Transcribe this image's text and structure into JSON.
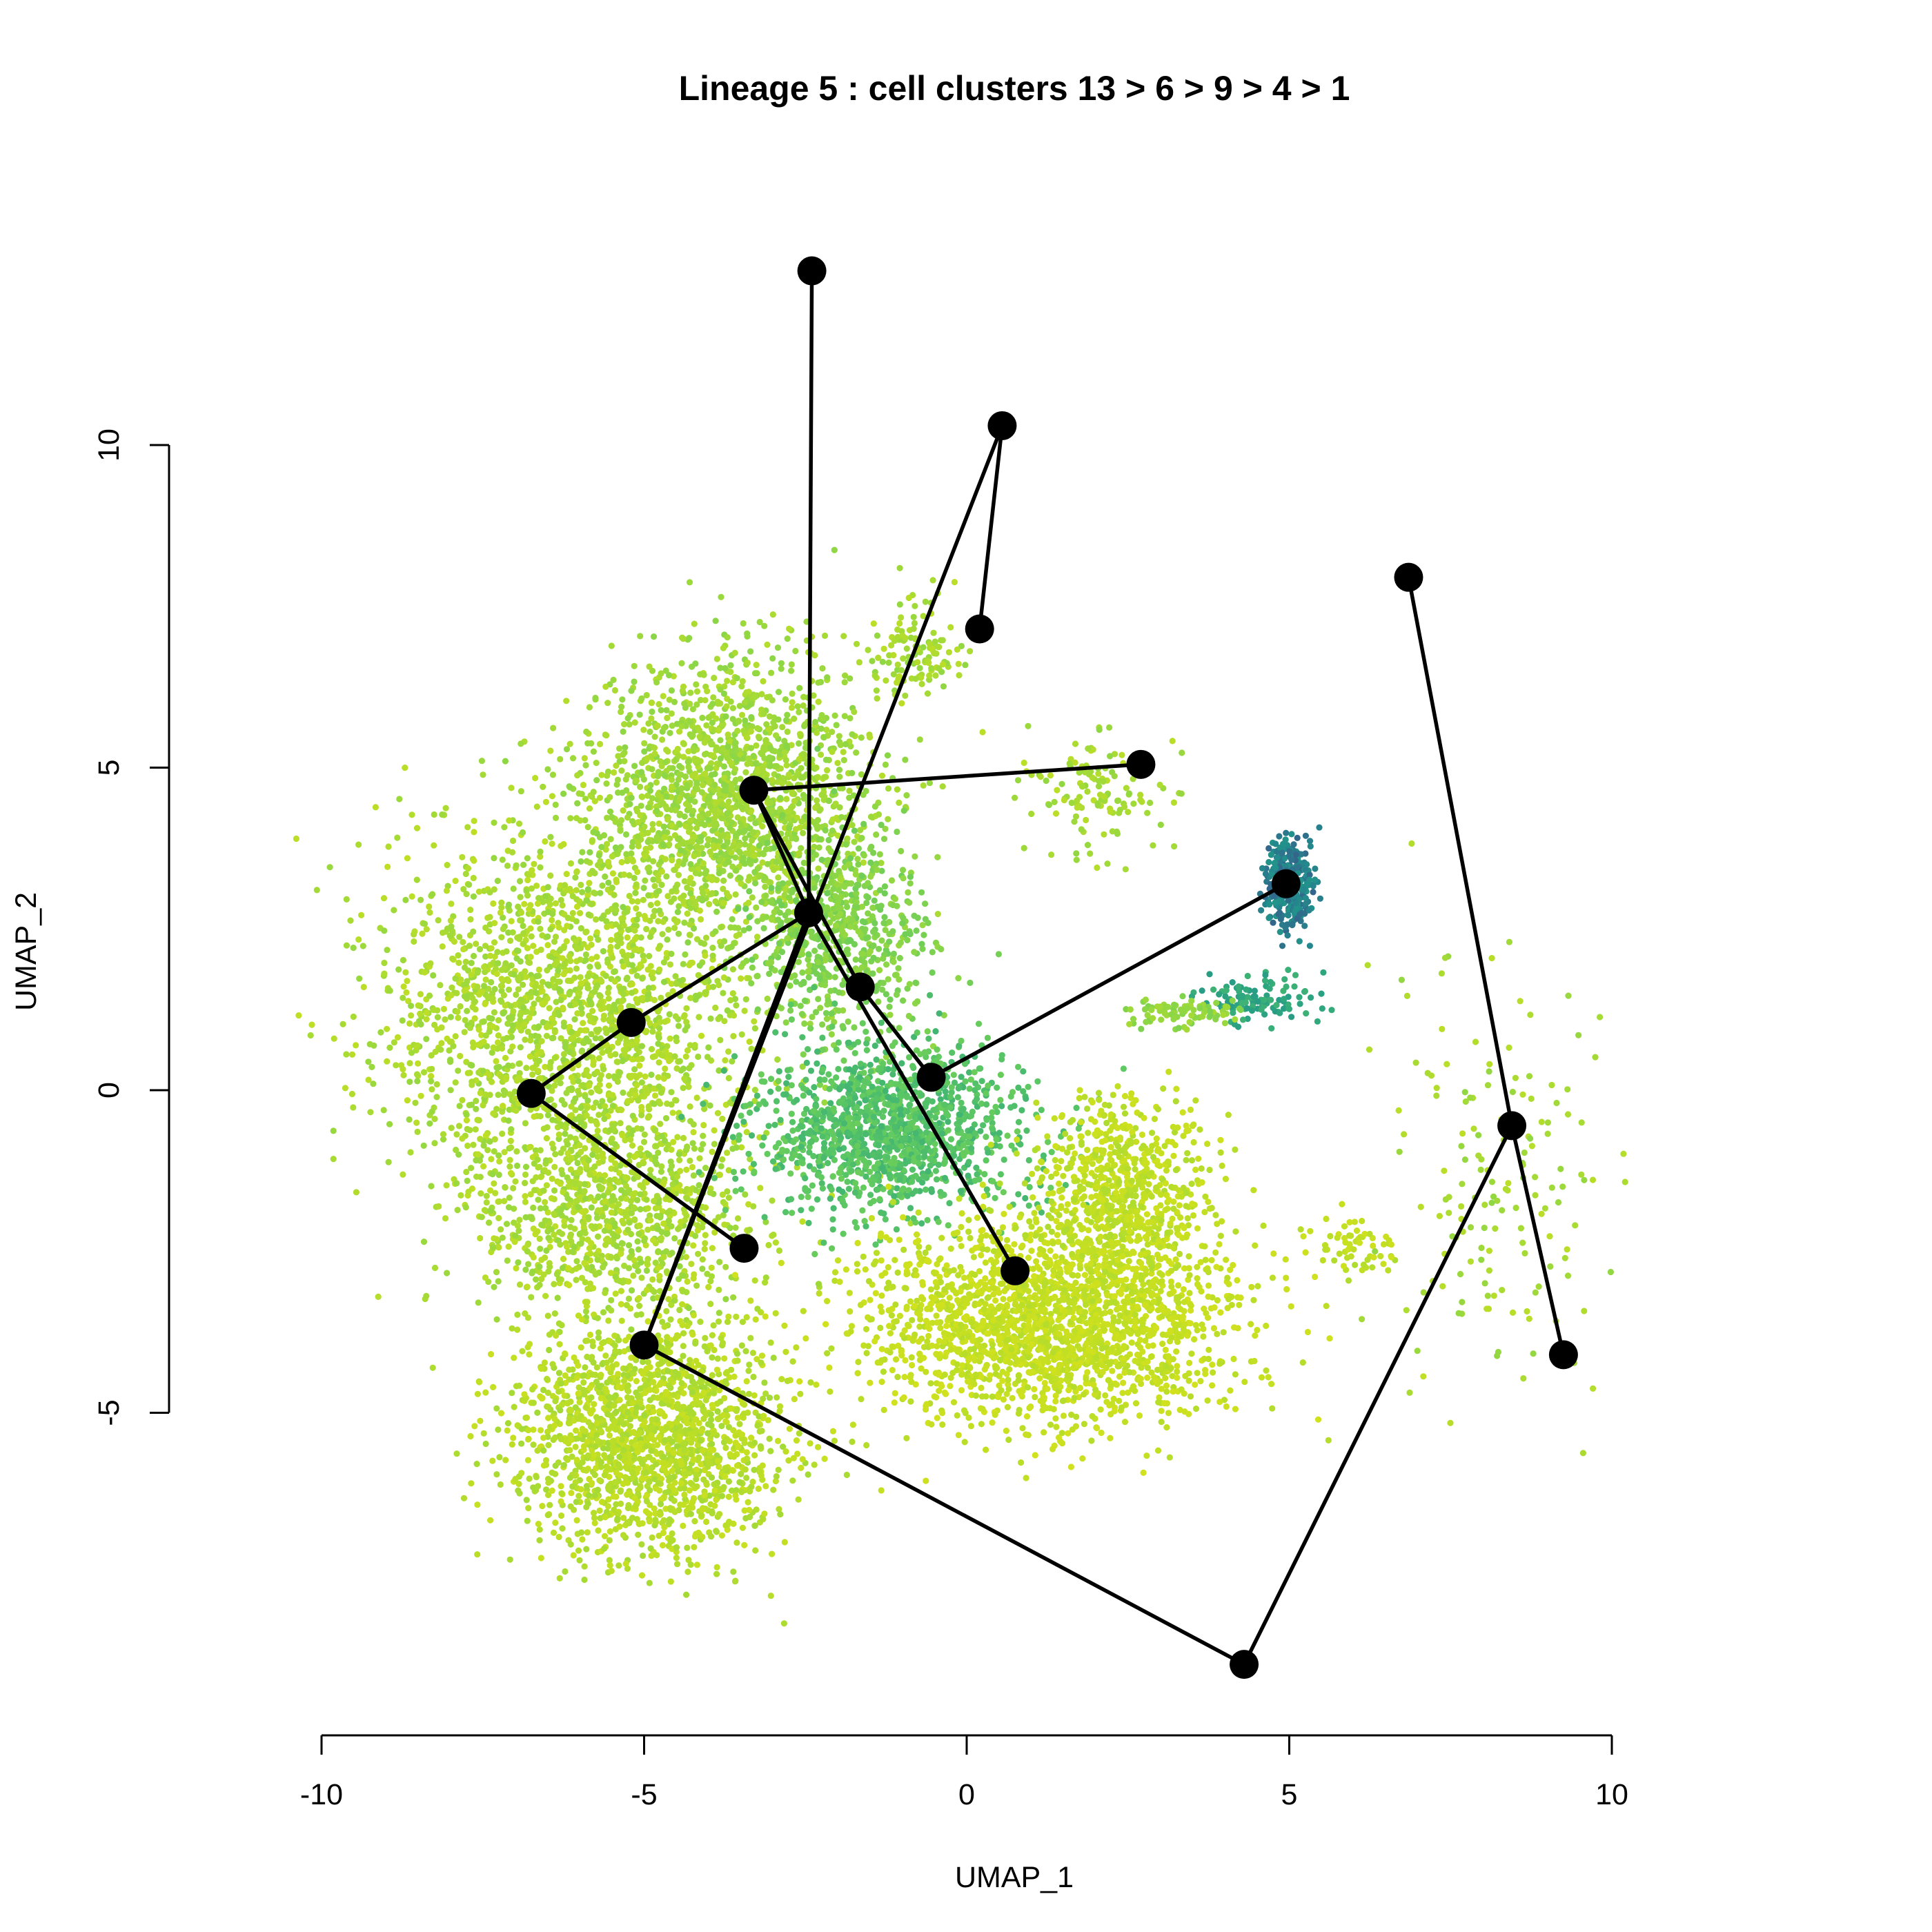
{
  "chart_data": {
    "type": "scatter",
    "title": "Lineage 5 : cell clusters 13 > 6 > 9 > 4 > 1",
    "xlabel": "UMAP_1",
    "ylabel": "UMAP_2",
    "xlim": [
      -10.5,
      10.5
    ],
    "ylim": [
      -9.8,
      12.8
    ],
    "x_ticks": [
      -10,
      -5,
      0,
      5,
      10
    ],
    "y_ticks": [
      -5,
      0,
      5,
      10
    ],
    "x_tick_labels": [
      "-10",
      "-5",
      "0",
      "5",
      "10"
    ],
    "y_tick_labels": [
      "-5",
      "0",
      "5",
      "10"
    ],
    "grid": false,
    "legend": "none",
    "colors": {
      "background": "#ffffff",
      "axes": "#000000",
      "trajectory": "#000000",
      "palette": [
        "#440154",
        "#3b528b",
        "#21908c",
        "#2ea67f",
        "#5ec962",
        "#8fd744",
        "#c2df23",
        "#dde318"
      ]
    },
    "cell_regions": [
      {
        "cx": -6.2,
        "cy": 1.2,
        "rx": 2.6,
        "ry": 2.6,
        "level": 0.79,
        "n": 2000
      },
      {
        "cx": -3.6,
        "cy": 4.6,
        "rx": 1.9,
        "ry": 1.9,
        "level": 0.76,
        "n": 1700
      },
      {
        "cx": -5.5,
        "cy": -2.0,
        "rx": 2.0,
        "ry": 1.6,
        "level": 0.79,
        "n": 900
      },
      {
        "cx": -4.9,
        "cy": -5.4,
        "rx": 1.9,
        "ry": 1.6,
        "level": 0.83,
        "n": 1700
      },
      {
        "cx": -2.0,
        "cy": 2.4,
        "rx": 1.2,
        "ry": 1.4,
        "level": 0.68,
        "n": 650
      },
      {
        "cx": -1.2,
        "cy": -0.6,
        "rx": 1.9,
        "ry": 1.2,
        "level": 0.55,
        "n": 1300
      },
      {
        "cx": 1.3,
        "cy": -3.6,
        "rx": 2.5,
        "ry": 1.4,
        "level": 0.88,
        "n": 2100
      },
      {
        "cx": 2.4,
        "cy": -1.6,
        "rx": 1.2,
        "ry": 1.3,
        "level": 0.86,
        "n": 700
      },
      {
        "cx": 5.0,
        "cy": 3.2,
        "rx": 0.35,
        "ry": 0.65,
        "level": 0.25,
        "n": 280
      },
      {
        "cx": 4.5,
        "cy": 1.4,
        "rx": 0.8,
        "ry": 0.35,
        "level": 0.42,
        "n": 110
      },
      {
        "cx": 3.4,
        "cy": 1.2,
        "rx": 0.8,
        "ry": 0.18,
        "level": 0.72,
        "n": 90
      },
      {
        "cx": 2.0,
        "cy": 4.6,
        "rx": 1.0,
        "ry": 0.8,
        "level": 0.78,
        "n": 130
      },
      {
        "cx": -0.8,
        "cy": 6.8,
        "rx": 0.7,
        "ry": 0.7,
        "level": 0.78,
        "n": 120
      },
      {
        "cx": 8.3,
        "cy": -1.5,
        "rx": 1.6,
        "ry": 2.8,
        "level": 0.78,
        "n": 160
      },
      {
        "cx": 6.0,
        "cy": -2.4,
        "rx": 0.6,
        "ry": 0.4,
        "level": 0.86,
        "n": 60
      }
    ],
    "nodes": [
      {
        "x": -2.4,
        "y": 12.7
      },
      {
        "x": 0.55,
        "y": 10.3
      },
      {
        "x": 0.2,
        "y": 7.15
      },
      {
        "x": 2.7,
        "y": 5.05
      },
      {
        "x": -3.3,
        "y": 4.65
      },
      {
        "x": -2.45,
        "y": 2.75
      },
      {
        "x": -1.65,
        "y": 1.6
      },
      {
        "x": -5.2,
        "y": 1.05
      },
      {
        "x": -6.75,
        "y": -0.05
      },
      {
        "x": -0.55,
        "y": 0.2
      },
      {
        "x": 4.95,
        "y": 3.2
      },
      {
        "x": -3.45,
        "y": -2.45
      },
      {
        "x": 0.75,
        "y": -2.8
      },
      {
        "x": -5.0,
        "y": -3.95
      },
      {
        "x": 4.3,
        "y": -8.9
      },
      {
        "x": 8.45,
        "y": -0.55
      },
      {
        "x": 6.85,
        "y": 7.95
      },
      {
        "x": 9.25,
        "y": -4.1
      }
    ],
    "edges": [
      [
        0,
        5
      ],
      [
        1,
        2
      ],
      [
        1,
        13
      ],
      [
        3,
        4
      ],
      [
        4,
        5
      ],
      [
        4,
        6
      ],
      [
        5,
        7
      ],
      [
        5,
        13
      ],
      [
        5,
        12
      ],
      [
        6,
        9
      ],
      [
        7,
        8
      ],
      [
        8,
        11
      ],
      [
        9,
        10
      ],
      [
        13,
        14
      ],
      [
        14,
        15
      ],
      [
        15,
        16
      ],
      [
        15,
        17
      ]
    ]
  }
}
